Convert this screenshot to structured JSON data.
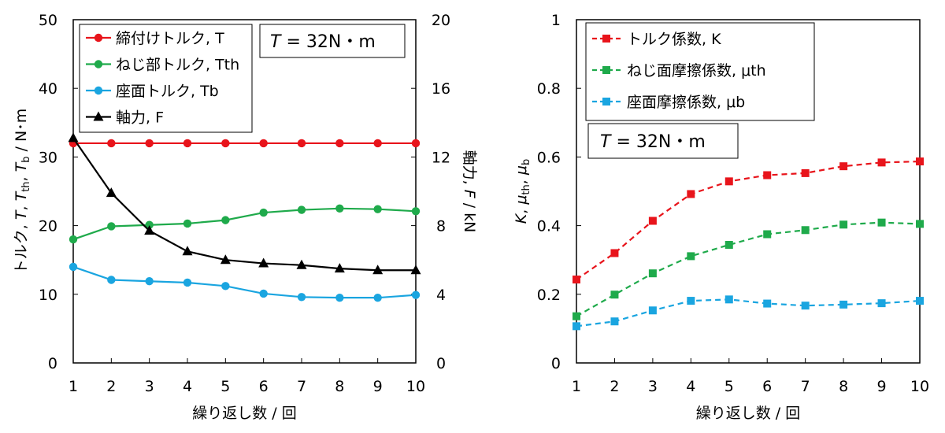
{
  "chart_data": [
    {
      "type": "line",
      "xlabel": "繰り返し数 / 回",
      "ylabel": {
        "parts": [
          "トルク, ",
          "T",
          ", ",
          "T",
          "th",
          ", ",
          "T",
          "b",
          " / N･m"
        ]
      },
      "y2label": {
        "parts": [
          "軸力, ",
          "F",
          " / kN"
        ]
      },
      "x": [
        1,
        2,
        3,
        4,
        5,
        6,
        7,
        8,
        9,
        10
      ],
      "xticks": [
        "1",
        "2",
        "3",
        "4",
        "5",
        "6",
        "7",
        "8",
        "9",
        "10"
      ],
      "ylim": [
        0,
        50
      ],
      "yticks": [
        "0",
        "10",
        "20",
        "30",
        "40",
        "50"
      ],
      "y2lim": [
        0,
        20
      ],
      "y2ticks": [
        "0",
        "4",
        "8",
        "12",
        "16",
        "20"
      ],
      "grid": false,
      "legend_position": "top-left",
      "annotation": {
        "parts": [
          "T",
          " = 32N・m"
        ]
      },
      "series": [
        {
          "name": "締付けトルク, T",
          "color": "#e8141b",
          "marker": "circle",
          "axis": "left",
          "values": [
            32,
            32,
            32,
            32,
            32,
            32,
            32,
            32,
            32,
            32
          ]
        },
        {
          "name": "ねじ部トルク, Tth",
          "color": "#1faa4b",
          "marker": "circle",
          "axis": "left",
          "values": [
            18.0,
            19.9,
            20.1,
            20.3,
            20.8,
            21.9,
            22.3,
            22.5,
            22.4,
            22.1
          ]
        },
        {
          "name": "座面トルク, Tb",
          "color": "#1aa5e0",
          "marker": "circle",
          "axis": "left",
          "values": [
            14.0,
            12.1,
            11.9,
            11.7,
            11.2,
            10.1,
            9.6,
            9.5,
            9.5,
            9.9
          ]
        },
        {
          "name": "軸力, F",
          "color": "#000000",
          "marker": "triangle",
          "axis": "right",
          "values": [
            13.1,
            9.9,
            7.7,
            6.5,
            6.0,
            5.8,
            5.7,
            5.5,
            5.4,
            5.4
          ]
        }
      ]
    },
    {
      "type": "line",
      "xlabel": "繰り返し数 / 回",
      "ylabel": {
        "parts": [
          "K",
          ", ",
          "μ",
          "th",
          ", ",
          "μ",
          "b"
        ]
      },
      "x": [
        1,
        2,
        3,
        4,
        5,
        6,
        7,
        8,
        9,
        10
      ],
      "xticks": [
        "1",
        "2",
        "3",
        "4",
        "5",
        "6",
        "7",
        "8",
        "9",
        "10"
      ],
      "ylim": [
        0,
        1
      ],
      "yticks": [
        "0",
        "0.2",
        "0.4",
        "0.6",
        "0.8",
        "1"
      ],
      "grid": false,
      "legend_position": "top-left",
      "annotation": {
        "parts": [
          "T",
          " = 32N・m"
        ]
      },
      "series": [
        {
          "name": "トルク係数, K",
          "color": "#e8141b",
          "marker": "square",
          "dashed": true,
          "values": [
            0.243,
            0.32,
            0.414,
            0.492,
            0.529,
            0.547,
            0.553,
            0.573,
            0.584,
            0.587
          ]
        },
        {
          "name": "ねじ面摩擦係数, μth",
          "color": "#1faa4b",
          "marker": "square",
          "dashed": true,
          "values": [
            0.136,
            0.199,
            0.261,
            0.311,
            0.344,
            0.375,
            0.387,
            0.403,
            0.409,
            0.405
          ]
        },
        {
          "name": "座面摩擦係数, μb",
          "color": "#1aa5e0",
          "marker": "square",
          "dashed": true,
          "values": [
            0.107,
            0.121,
            0.153,
            0.181,
            0.185,
            0.173,
            0.167,
            0.17,
            0.174,
            0.181
          ]
        }
      ]
    }
  ]
}
